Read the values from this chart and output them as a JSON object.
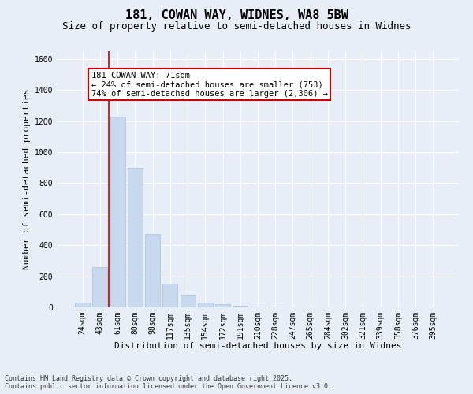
{
  "title": "181, COWAN WAY, WIDNES, WA8 5BW",
  "subtitle": "Size of property relative to semi-detached houses in Widnes",
  "xlabel": "Distribution of semi-detached houses by size in Widnes",
  "ylabel": "Number of semi-detached properties",
  "categories": [
    "24sqm",
    "43sqm",
    "61sqm",
    "80sqm",
    "98sqm",
    "117sqm",
    "135sqm",
    "154sqm",
    "172sqm",
    "191sqm",
    "210sqm",
    "228sqm",
    "247sqm",
    "265sqm",
    "284sqm",
    "302sqm",
    "321sqm",
    "339sqm",
    "358sqm",
    "376sqm",
    "395sqm"
  ],
  "values": [
    30,
    260,
    1230,
    900,
    470,
    150,
    80,
    30,
    20,
    10,
    5,
    3,
    2,
    1,
    1,
    0,
    0,
    0,
    0,
    0,
    0
  ],
  "bar_color": "#c8d9ee",
  "bar_edge_color": "#a8c0dc",
  "vline_color": "#cc0000",
  "vline_index": 1.5,
  "annotation_text": "181 COWAN WAY: 71sqm\n← 24% of semi-detached houses are smaller (753)\n74% of semi-detached houses are larger (2,306) →",
  "annotation_box_color": "#ffffff",
  "annotation_box_edge_color": "#cc0000",
  "ylim": [
    0,
    1650
  ],
  "yticks": [
    0,
    200,
    400,
    600,
    800,
    1000,
    1200,
    1400,
    1600
  ],
  "background_color": "#e8eef8",
  "plot_background_color": "#e8eef8",
  "footer_line1": "Contains HM Land Registry data © Crown copyright and database right 2025.",
  "footer_line2": "Contains public sector information licensed under the Open Government Licence v3.0.",
  "title_fontsize": 11,
  "subtitle_fontsize": 9,
  "axis_label_fontsize": 8,
  "tick_fontsize": 7,
  "annotation_fontsize": 7.5,
  "footer_fontsize": 6
}
